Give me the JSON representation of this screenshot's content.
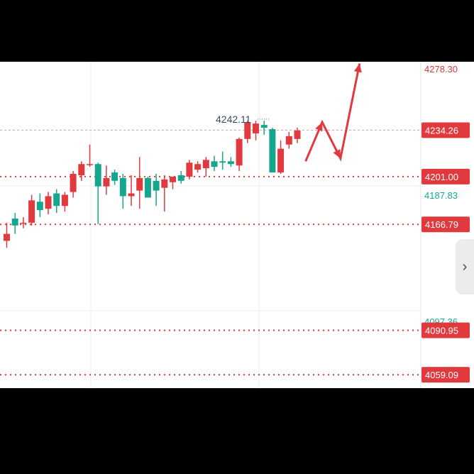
{
  "chart_data": {
    "type": "candlestick",
    "y_axis": {
      "ylim": [
        4049.5,
        4283.3
      ],
      "tick_labels": [
        "4278.30",
        "4187.83",
        "4097.36"
      ]
    },
    "price_markers": {
      "current": {
        "value": 4234.26,
        "label": "4234.26",
        "color": "#e0393e"
      },
      "high_label": {
        "value": 4242.11,
        "label": "4242.11"
      }
    },
    "levels": [
      {
        "value": 4201.0,
        "label": "4201.00"
      },
      {
        "value": 4166.79,
        "label": "4166.79"
      },
      {
        "value": 4090.95,
        "label": "4090.95"
      },
      {
        "value": 4059.09,
        "label": "4059.09"
      }
    ],
    "candles": [
      {
        "o": 4155,
        "h": 4168,
        "l": 4150,
        "c": 4160
      },
      {
        "o": 4171,
        "h": 4175,
        "l": 4160,
        "c": 4166
      },
      {
        "o": 4168,
        "h": 4172,
        "l": 4164,
        "c": 4168
      },
      {
        "o": 4168,
        "h": 4188,
        "l": 4166,
        "c": 4184
      },
      {
        "o": 4183,
        "h": 4189,
        "l": 4172,
        "c": 4177
      },
      {
        "o": 4178,
        "h": 4190,
        "l": 4174,
        "c": 4187
      },
      {
        "o": 4189,
        "h": 4192,
        "l": 4175,
        "c": 4180
      },
      {
        "o": 4180,
        "h": 4190,
        "l": 4176,
        "c": 4188
      },
      {
        "o": 4190,
        "h": 4205,
        "l": 4186,
        "c": 4203
      },
      {
        "o": 4202,
        "h": 4212,
        "l": 4198,
        "c": 4210
      },
      {
        "o": 4210,
        "h": 4224,
        "l": 4208,
        "c": 4210
      },
      {
        "o": 4210,
        "h": 4211,
        "l": 4167,
        "c": 4194
      },
      {
        "o": 4194,
        "h": 4209,
        "l": 4188,
        "c": 4200
      },
      {
        "o": 4204,
        "h": 4206,
        "l": 4195,
        "c": 4198
      },
      {
        "o": 4200,
        "h": 4203,
        "l": 4178,
        "c": 4187
      },
      {
        "o": 4187,
        "h": 4202,
        "l": 4180,
        "c": 4189
      },
      {
        "o": 4191,
        "h": 4215,
        "l": 4178,
        "c": 4200
      },
      {
        "o": 4200,
        "h": 4201,
        "l": 4187,
        "c": 4186
      },
      {
        "o": 4198,
        "h": 4203,
        "l": 4180,
        "c": 4191
      },
      {
        "o": 4193,
        "h": 4202,
        "l": 4176,
        "c": 4199
      },
      {
        "o": 4197,
        "h": 4200,
        "l": 4192,
        "c": 4201
      },
      {
        "o": 4202,
        "h": 4205,
        "l": 4196,
        "c": 4198
      },
      {
        "o": 4201,
        "h": 4213,
        "l": 4199,
        "c": 4211
      },
      {
        "o": 4206,
        "h": 4212,
        "l": 4204,
        "c": 4210
      },
      {
        "o": 4207,
        "h": 4215,
        "l": 4201,
        "c": 4213
      },
      {
        "o": 4212,
        "h": 4216,
        "l": 4205,
        "c": 4208
      },
      {
        "o": 4212,
        "h": 4219,
        "l": 4206,
        "c": 4211
      },
      {
        "o": 4212,
        "h": 4215,
        "l": 4208,
        "c": 4210
      },
      {
        "o": 4209,
        "h": 4229,
        "l": 4205,
        "c": 4228
      },
      {
        "o": 4228,
        "h": 4241,
        "l": 4225,
        "c": 4240
      },
      {
        "o": 4232,
        "h": 4241,
        "l": 4227,
        "c": 4239
      },
      {
        "o": 4238,
        "h": 4241,
        "l": 4231,
        "c": 4236
      },
      {
        "o": 4235,
        "h": 4236,
        "l": 4205,
        "c": 4204
      },
      {
        "o": 4204,
        "h": 4227,
        "l": 4203,
        "c": 4221
      },
      {
        "o": 4224,
        "h": 4233,
        "l": 4221,
        "c": 4230
      },
      {
        "o": 4228,
        "h": 4236,
        "l": 4225,
        "c": 4234
      }
    ],
    "colors": {
      "up": "#e0393e",
      "down": "#16a58d",
      "grid": "#ececec",
      "axis_text": "#d9363e",
      "axis_text_green": "#16a58d",
      "muted_text": "#3b4a5a"
    },
    "projection_arrow": {
      "color": "#e0393e",
      "points": [
        [
          1,
          4212
        ],
        [
          3,
          4240
        ],
        [
          5.2,
          4214
        ],
        [
          7.5,
          4282
        ]
      ]
    }
  }
}
